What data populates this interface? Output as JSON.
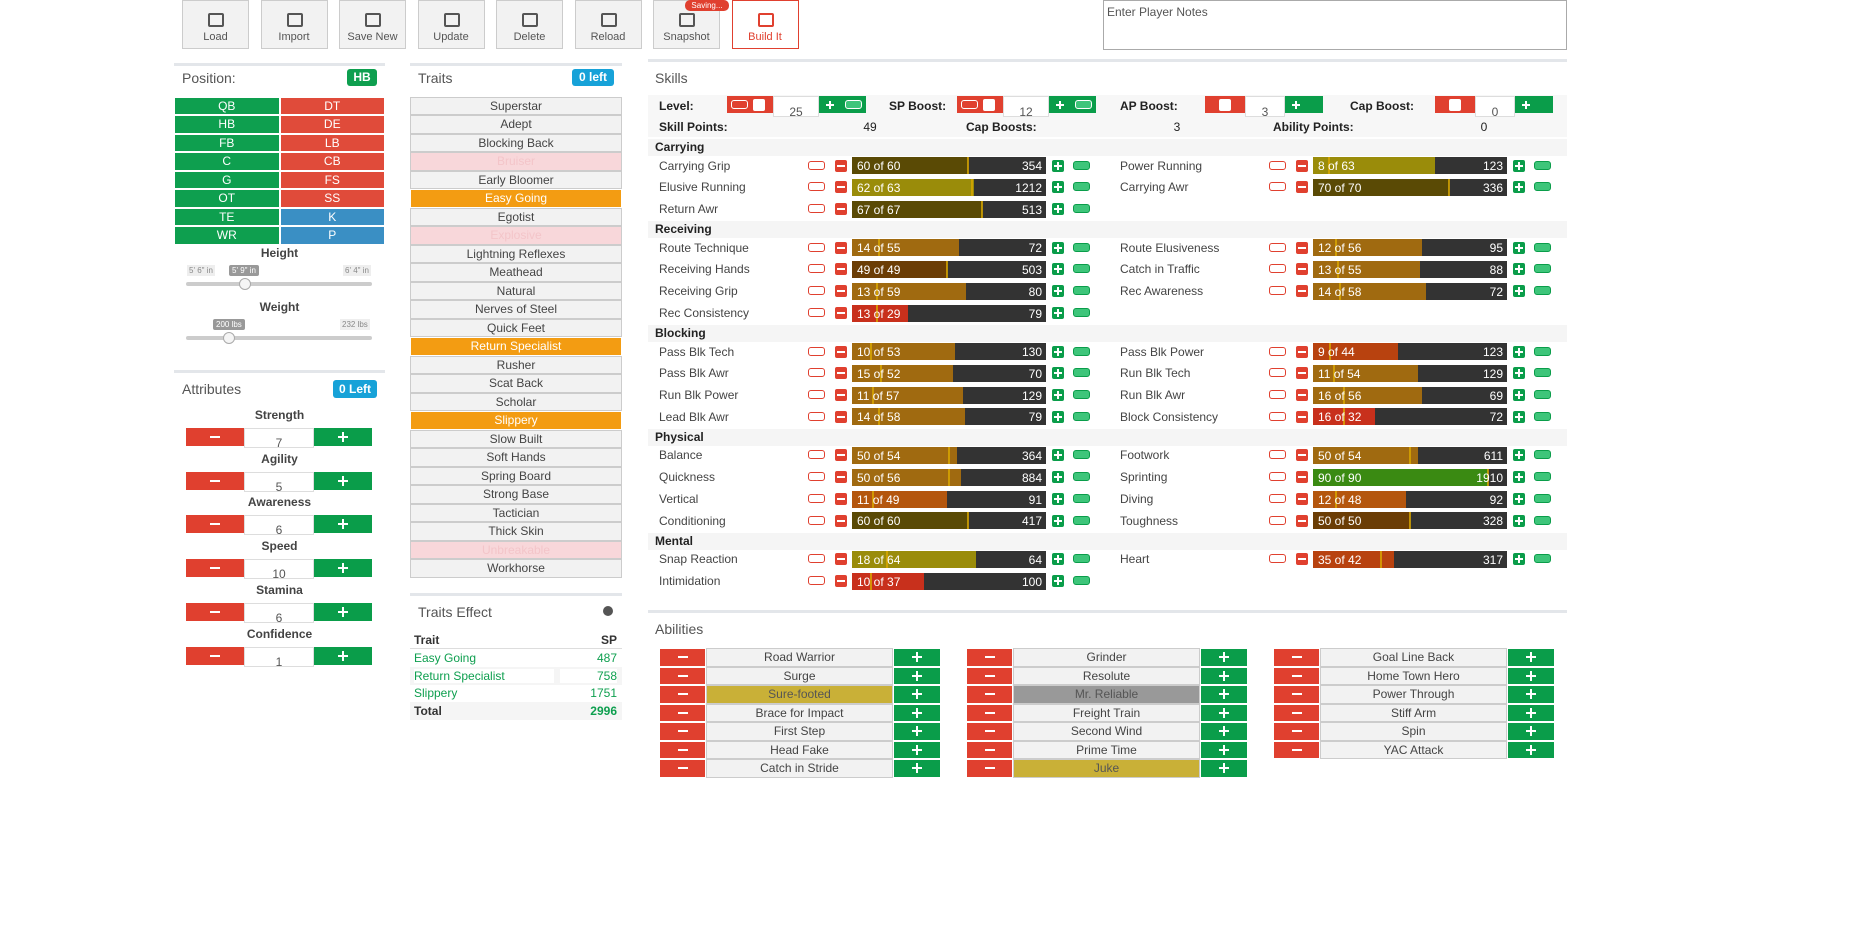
{
  "toolbar": {
    "buttons": [
      "Load",
      "Import",
      "Save New",
      "Update",
      "Delete",
      "Reload",
      "Snapshot",
      "Build It"
    ],
    "saving_badge": "Saving...",
    "notes_placeholder": "Enter Player Notes"
  },
  "position": {
    "title": "Position:",
    "badge": "HB",
    "cells": [
      {
        "label": "QB",
        "color": "#0e9f4f"
      },
      {
        "label": "DT",
        "color": "#e04b3a"
      },
      {
        "label": "HB",
        "color": "#0e9f4f"
      },
      {
        "label": "DE",
        "color": "#e04b3a"
      },
      {
        "label": "FB",
        "color": "#0e9f4f"
      },
      {
        "label": "LB",
        "color": "#e04b3a"
      },
      {
        "label": "C",
        "color": "#0e9f4f"
      },
      {
        "label": "CB",
        "color": "#e04b3a"
      },
      {
        "label": "G",
        "color": "#0e9f4f"
      },
      {
        "label": "FS",
        "color": "#e04b3a"
      },
      {
        "label": "OT",
        "color": "#0e9f4f"
      },
      {
        "label": "SS",
        "color": "#e04b3a"
      },
      {
        "label": "TE",
        "color": "#0e9f4f"
      },
      {
        "label": "K",
        "color": "#3a8fc4"
      },
      {
        "label": "WR",
        "color": "#0e9f4f"
      },
      {
        "label": "P",
        "color": "#3a8fc4"
      }
    ],
    "height": {
      "label": "Height",
      "min": "5' 6\" in",
      "current": "5' 9\" in",
      "max": "6' 4\" in"
    },
    "weight": {
      "label": "Weight",
      "current": "200 lbs",
      "max": "232 lbs"
    }
  },
  "attributes": {
    "title": "Attributes",
    "badge": "0 Left",
    "items": [
      {
        "name": "Strength",
        "value": 7
      },
      {
        "name": "Agility",
        "value": 5
      },
      {
        "name": "Awareness",
        "value": 6
      },
      {
        "name": "Speed",
        "value": 10
      },
      {
        "name": "Stamina",
        "value": 6
      },
      {
        "name": "Confidence",
        "value": 1
      }
    ]
  },
  "traits": {
    "title": "Traits",
    "badge": "0 left",
    "items": [
      {
        "name": "Superstar"
      },
      {
        "name": "Adept"
      },
      {
        "name": "Blocking Back"
      },
      {
        "name": "Bruiser",
        "state": "disabled"
      },
      {
        "name": "Early Bloomer"
      },
      {
        "name": "Easy Going",
        "state": "selected"
      },
      {
        "name": "Egotist"
      },
      {
        "name": "Explosive",
        "state": "disabled"
      },
      {
        "name": "Lightning Reflexes"
      },
      {
        "name": "Meathead"
      },
      {
        "name": "Natural"
      },
      {
        "name": "Nerves of Steel"
      },
      {
        "name": "Quick Feet"
      },
      {
        "name": "Return Specialist",
        "state": "selected"
      },
      {
        "name": "Rusher"
      },
      {
        "name": "Scat Back"
      },
      {
        "name": "Scholar"
      },
      {
        "name": "Slippery",
        "state": "selected"
      },
      {
        "name": "Slow Built"
      },
      {
        "name": "Soft Hands"
      },
      {
        "name": "Spring Board"
      },
      {
        "name": "Strong Base"
      },
      {
        "name": "Tactician"
      },
      {
        "name": "Thick Skin"
      },
      {
        "name": "Unbreakable",
        "state": "disabled"
      },
      {
        "name": "Workhorse"
      }
    ]
  },
  "traits_effect": {
    "title": "Traits Effect",
    "columns": [
      "Trait",
      "SP"
    ],
    "rows": [
      [
        "Easy Going",
        487
      ],
      [
        "Return Specialist",
        758
      ],
      [
        "Slippery",
        1751
      ]
    ],
    "total": [
      "Total",
      2996
    ]
  },
  "skills": {
    "title": "Skills",
    "boosts": [
      {
        "label": "Level:",
        "value": 25
      },
      {
        "label": "SP Boost:",
        "value": 12
      },
      {
        "label": "AP Boost:",
        "value": 3
      },
      {
        "label": "Cap Boost:",
        "value": 0
      }
    ],
    "summary": [
      {
        "label": "Skill Points:",
        "value": 49
      },
      {
        "label": "Cap Boosts:",
        "value": 3
      },
      {
        "label": "Ability Points:",
        "value": 0
      }
    ],
    "groups": [
      {
        "name": "Carrying",
        "left": [
          {
            "name": "Carrying Grip",
            "value": 60,
            "cap": 60,
            "level_label": "60 of 60",
            "cost": 354
          },
          {
            "name": "Elusive Running",
            "value": 62,
            "cap": 63,
            "level_label": "62 of 63",
            "cost": 1212
          },
          {
            "name": "Return Awr",
            "value": 67,
            "cap": 67,
            "level_label": "67 of 67",
            "cost": 513
          }
        ],
        "right": [
          {
            "name": "Power Running",
            "value": 8,
            "cap": 63,
            "level_label": "8 of 63",
            "cost": 123
          },
          {
            "name": "Carrying Awr",
            "value": 70,
            "cap": 70,
            "level_label": "70 of 70",
            "cost": 336
          }
        ]
      },
      {
        "name": "Receiving",
        "left": [
          {
            "name": "Route Technique",
            "value": 14,
            "cap": 55,
            "level_label": "14 of 55",
            "cost": 72
          },
          {
            "name": "Receiving Hands",
            "value": 49,
            "cap": 49,
            "level_label": "49 of 49",
            "cost": 503
          },
          {
            "name": "Receiving Grip",
            "value": 13,
            "cap": 59,
            "level_label": "13 of 59",
            "cost": 80
          },
          {
            "name": "Rec Consistency",
            "value": 13,
            "cap": 29,
            "level_label": "13 of 29",
            "cost": 79
          }
        ],
        "right": [
          {
            "name": "Route Elusiveness",
            "value": 12,
            "cap": 56,
            "level_label": "12 of 56",
            "cost": 95
          },
          {
            "name": "Catch in Traffic",
            "value": 13,
            "cap": 55,
            "level_label": "13 of 55",
            "cost": 88
          },
          {
            "name": "Rec Awareness",
            "value": 14,
            "cap": 58,
            "level_label": "14 of 58",
            "cost": 72
          }
        ]
      },
      {
        "name": "Blocking",
        "left": [
          {
            "name": "Pass Blk Tech",
            "value": 10,
            "cap": 53,
            "level_label": "10 of 53",
            "cost": 130
          },
          {
            "name": "Pass Blk Awr",
            "value": 15,
            "cap": 52,
            "level_label": "15 of 52",
            "cost": 70
          },
          {
            "name": "Run Blk Power",
            "value": 11,
            "cap": 57,
            "level_label": "11 of 57",
            "cost": 129
          },
          {
            "name": "Lead Blk Awr",
            "value": 14,
            "cap": 58,
            "level_label": "14 of 58",
            "cost": 79
          }
        ],
        "right": [
          {
            "name": "Pass Blk Power",
            "value": 9,
            "cap": 44,
            "level_label": "9 of 44",
            "cost": 123
          },
          {
            "name": "Run Blk Tech",
            "value": 11,
            "cap": 54,
            "level_label": "11 of 54",
            "cost": 129
          },
          {
            "name": "Run Blk Awr",
            "value": 16,
            "cap": 56,
            "level_label": "16 of 56",
            "cost": 69
          },
          {
            "name": "Block Consistency",
            "value": 16,
            "cap": 32,
            "level_label": "16 of 32",
            "cost": 72
          }
        ]
      },
      {
        "name": "Physical",
        "left": [
          {
            "name": "Balance",
            "value": 50,
            "cap": 54,
            "level_label": "50 of 54",
            "cost": 364
          },
          {
            "name": "Quickness",
            "value": 50,
            "cap": 56,
            "level_label": "50 of 56",
            "cost": 884
          },
          {
            "name": "Vertical",
            "value": 11,
            "cap": 49,
            "level_label": "11 of 49",
            "cost": 91
          },
          {
            "name": "Conditioning",
            "value": 60,
            "cap": 60,
            "level_label": "60 of 60",
            "cost": 417
          }
        ],
        "right": [
          {
            "name": "Footwork",
            "value": 50,
            "cap": 54,
            "level_label": "50 of 54",
            "cost": 611
          },
          {
            "name": "Sprinting",
            "value": 90,
            "cap": 90,
            "level_label": "90 of 90",
            "cost": 1910
          },
          {
            "name": "Diving",
            "value": 12,
            "cap": 48,
            "level_label": "12 of 48",
            "cost": 92
          },
          {
            "name": "Toughness",
            "value": 50,
            "cap": 50,
            "level_label": "50 of 50",
            "cost": 328
          }
        ]
      },
      {
        "name": "Mental",
        "left": [
          {
            "name": "Snap Reaction",
            "value": 18,
            "cap": 64,
            "level_label": "18 of 64",
            "cost": 64
          },
          {
            "name": "Intimidation",
            "value": 10,
            "cap": 37,
            "level_label": "10 of 37",
            "cost": 100
          }
        ],
        "right": [
          {
            "name": "Heart",
            "value": 35,
            "cap": 42,
            "level_label": "35 of 42",
            "cost": 317
          }
        ]
      }
    ]
  },
  "abilities": {
    "title": "Abilities",
    "columns": [
      [
        {
          "name": "Road Warrior"
        },
        {
          "name": "Surge"
        },
        {
          "name": "Sure-footed",
          "state": "selected"
        },
        {
          "name": "Brace for Impact"
        },
        {
          "name": "First Step"
        },
        {
          "name": "Head Fake"
        },
        {
          "name": "Catch in Stride"
        }
      ],
      [
        {
          "name": "Grinder"
        },
        {
          "name": "Resolute"
        },
        {
          "name": "Mr. Reliable",
          "state": "disabled"
        },
        {
          "name": "Freight Train"
        },
        {
          "name": "Second Wind"
        },
        {
          "name": "Prime Time"
        },
        {
          "name": "Juke",
          "state": "selected"
        }
      ],
      [
        {
          "name": "Goal Line Back"
        },
        {
          "name": "Home Town Hero"
        },
        {
          "name": "Power Through"
        },
        {
          "name": "Stiff Arm"
        },
        {
          "name": "Spin"
        },
        {
          "name": "YAC Attack"
        }
      ]
    ]
  }
}
